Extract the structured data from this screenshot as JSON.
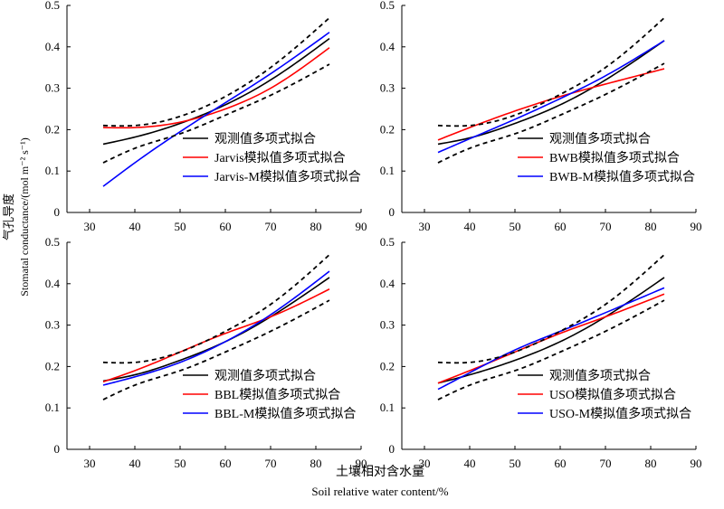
{
  "figure": {
    "ylabel_cn": "气孔导度",
    "ylabel_en": "Stomatal conductance/(mol m⁻² s⁻¹)",
    "xlabel_cn": "土壤相对含水量",
    "xlabel_en": "Soil relative water content/%"
  },
  "colors": {
    "observed": "#000000",
    "model": "#ff0000",
    "model_m": "#0000ff",
    "ci": "#000000"
  },
  "chart_data": [
    {
      "type": "line",
      "panel": "top-left",
      "xlim": [
        25,
        90
      ],
      "ylim": [
        0,
        0.5
      ],
      "xticks": [
        30,
        40,
        50,
        60,
        70,
        80,
        90
      ],
      "yticks": [
        0,
        0.1,
        0.2,
        0.3,
        0.4,
        0.5
      ],
      "legend": [
        "观测值多项式拟合",
        "Jarvis模拟值多项式拟合",
        "Jarvis-M模拟值多项式拟合"
      ],
      "legend_position": "bottom-right",
      "x": [
        33,
        40,
        50,
        60,
        70,
        83
      ],
      "series": [
        {
          "name": "观测值多项式拟合",
          "style": "observed",
          "values": [
            0.165,
            0.182,
            0.215,
            0.26,
            0.32,
            0.42
          ]
        },
        {
          "name": "Jarvis模拟值多项式拟合",
          "style": "model",
          "values": [
            0.205,
            0.205,
            0.218,
            0.25,
            0.3,
            0.398
          ]
        },
        {
          "name": "Jarvis-M模拟值多项式拟合",
          "style": "model_m",
          "values": [
            0.063,
            0.12,
            0.195,
            0.265,
            0.335,
            0.435
          ]
        },
        {
          "style": "ci",
          "values": [
            0.21,
            0.21,
            0.232,
            0.28,
            0.35,
            0.47
          ]
        },
        {
          "style": "ci",
          "values": [
            0.12,
            0.155,
            0.19,
            0.235,
            0.283,
            0.358
          ]
        }
      ]
    },
    {
      "type": "line",
      "panel": "top-right",
      "xlim": [
        25,
        90
      ],
      "ylim": [
        0,
        0.5
      ],
      "xticks": [
        30,
        40,
        50,
        60,
        70,
        80,
        90
      ],
      "yticks": [
        0,
        0.1,
        0.2,
        0.3,
        0.4,
        0.5
      ],
      "legend": [
        "观测值多项式拟合",
        "BWB模拟值多项式拟合",
        "BWB-M模拟值多项式拟合"
      ],
      "legend_position": "bottom-right",
      "x": [
        33,
        40,
        50,
        60,
        70,
        83
      ],
      "series": [
        {
          "name": "观测值多项式拟合",
          "style": "observed",
          "values": [
            0.165,
            0.18,
            0.215,
            0.26,
            0.32,
            0.415
          ]
        },
        {
          "name": "BWB模拟值多项式拟合",
          "style": "model",
          "values": [
            0.175,
            0.205,
            0.245,
            0.28,
            0.31,
            0.347
          ]
        },
        {
          "name": "BWB-M模拟值多项式拟合",
          "style": "model_m",
          "values": [
            0.145,
            0.178,
            0.225,
            0.275,
            0.33,
            0.415
          ]
        },
        {
          "style": "ci",
          "values": [
            0.21,
            0.21,
            0.235,
            0.285,
            0.35,
            0.47
          ]
        },
        {
          "style": "ci",
          "values": [
            0.12,
            0.155,
            0.19,
            0.235,
            0.285,
            0.36
          ]
        }
      ]
    },
    {
      "type": "line",
      "panel": "bottom-left",
      "xlim": [
        25,
        90
      ],
      "ylim": [
        0,
        0.5
      ],
      "xticks": [
        30,
        40,
        50,
        60,
        70,
        80,
        90
      ],
      "yticks": [
        0,
        0.1,
        0.2,
        0.3,
        0.4,
        0.5
      ],
      "legend": [
        "观测值多项式拟合",
        "BBL模拟值多项式拟合",
        "BBL-M模拟值多项式拟合"
      ],
      "legend_position": "bottom-right",
      "x": [
        33,
        40,
        50,
        60,
        70,
        83
      ],
      "series": [
        {
          "name": "观测值多项式拟合",
          "style": "observed",
          "values": [
            0.165,
            0.18,
            0.215,
            0.26,
            0.32,
            0.415
          ]
        },
        {
          "name": "BBL模拟值多项式拟合",
          "style": "model",
          "values": [
            0.163,
            0.19,
            0.235,
            0.28,
            0.32,
            0.387
          ]
        },
        {
          "name": "BBL-M模拟值多项式拟合",
          "style": "model_m",
          "values": [
            0.155,
            0.175,
            0.21,
            0.26,
            0.325,
            0.43
          ]
        },
        {
          "style": "ci",
          "values": [
            0.21,
            0.21,
            0.235,
            0.285,
            0.35,
            0.47
          ]
        },
        {
          "style": "ci",
          "values": [
            0.12,
            0.155,
            0.19,
            0.235,
            0.285,
            0.36
          ]
        }
      ]
    },
    {
      "type": "line",
      "panel": "bottom-right",
      "xlim": [
        25,
        90
      ],
      "ylim": [
        0,
        0.5
      ],
      "xticks": [
        30,
        40,
        50,
        60,
        70,
        80,
        90
      ],
      "yticks": [
        0,
        0.1,
        0.2,
        0.3,
        0.4,
        0.5
      ],
      "legend": [
        "观测值多项式拟合",
        "USO模拟值多项式拟合",
        "USO-M模拟值多项式拟合"
      ],
      "legend_position": "bottom-right",
      "x": [
        33,
        40,
        50,
        60,
        70,
        83
      ],
      "series": [
        {
          "name": "观测值多项式拟合",
          "style": "observed",
          "values": [
            0.16,
            0.18,
            0.215,
            0.26,
            0.32,
            0.415
          ]
        },
        {
          "name": "USO模拟值多项式拟合",
          "style": "model",
          "values": [
            0.16,
            0.19,
            0.235,
            0.28,
            0.32,
            0.375
          ]
        },
        {
          "name": "USO-M模拟值多项式拟合",
          "style": "model_m",
          "values": [
            0.145,
            0.185,
            0.24,
            0.285,
            0.33,
            0.39
          ]
        },
        {
          "style": "ci",
          "values": [
            0.21,
            0.21,
            0.235,
            0.285,
            0.35,
            0.47
          ]
        },
        {
          "style": "ci",
          "values": [
            0.12,
            0.155,
            0.19,
            0.235,
            0.285,
            0.36
          ]
        }
      ]
    }
  ]
}
